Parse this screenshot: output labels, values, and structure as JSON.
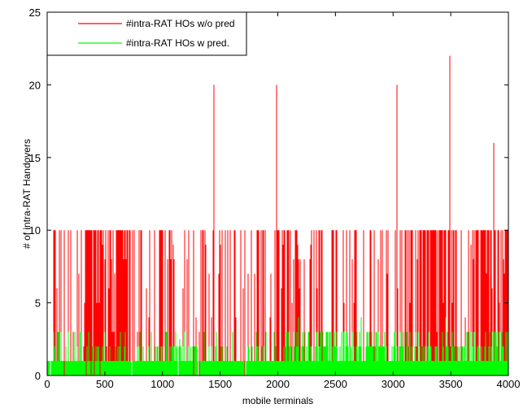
{
  "chart_data": {
    "type": "bar",
    "xlabel": "mobile terminals",
    "ylabel": "# of intra-RAT Handovers",
    "xlim": [
      0,
      4000
    ],
    "ylim": [
      0,
      25
    ],
    "xticks": [
      0,
      500,
      1000,
      1500,
      2000,
      2500,
      3000,
      3500,
      4000
    ],
    "yticks": [
      0,
      5,
      10,
      15,
      20,
      25
    ],
    "grid": false,
    "legend_position": "top-left",
    "num_terminals": 4000,
    "series": [
      {
        "name": "#intra-RAT HOs w/o pred",
        "color": "#ff0000",
        "description": "per-terminal handover counts without prediction; mostly 10, some at 1-9, spikes",
        "spikes": [
          {
            "x": 1447,
            "y": 20
          },
          {
            "x": 1990,
            "y": 20
          },
          {
            "x": 3030,
            "y": 20
          },
          {
            "x": 3495,
            "y": 22
          },
          {
            "x": 3870,
            "y": 16
          }
        ],
        "dense_ranges": [
          [
            340,
            720
          ],
          [
            2000,
            2200
          ],
          [
            3100,
            3500
          ],
          [
            3700,
            4000
          ]
        ]
      },
      {
        "name": "#intra-RAT HOs w pred.",
        "color": "#00ff00",
        "description": "per-terminal handover counts with prediction; mostly 0-1, occasionally 2-4",
        "bumps": [
          {
            "x": 1150,
            "y": 2.5
          },
          {
            "x": 1230,
            "y": 2.0
          },
          {
            "x": 2180,
            "y": 4.0
          },
          {
            "x": 2720,
            "y": 4.0
          },
          {
            "x": 3020,
            "y": 3.0
          },
          {
            "x": 3090,
            "y": 3.0
          },
          {
            "x": 3460,
            "y": 4.0
          },
          {
            "x": 3800,
            "y": 3.0
          },
          {
            "x": 3840,
            "y": 3.0
          }
        ],
        "dense_from": 1950
      }
    ]
  }
}
